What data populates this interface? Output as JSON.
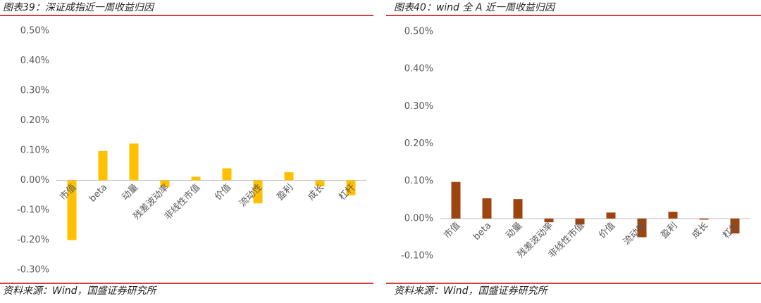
{
  "chart_data": [
    {
      "type": "bar",
      "title": "图表39：深证成指近一周收益归因",
      "source": "资料来源：Wind，国盛证券研究所",
      "categories": [
        "市值",
        "beta",
        "动量",
        "残差波动率",
        "非线性市值",
        "价值",
        "流动性",
        "盈利",
        "成长",
        "杠杆"
      ],
      "values": [
        -0.2,
        0.098,
        0.123,
        -0.022,
        0.012,
        0.04,
        -0.077,
        0.027,
        -0.02,
        -0.05
      ],
      "color": "#FFC000",
      "grid": false,
      "ylim": [
        -0.3,
        0.5
      ],
      "yticks": [
        {
          "value": -0.3,
          "label": "-0.30%"
        },
        {
          "value": -0.2,
          "label": "-0.20%"
        },
        {
          "value": -0.1,
          "label": "-0.10%"
        },
        {
          "value": 0,
          "label": "0.00%"
        },
        {
          "value": 0.1,
          "label": "0.10%"
        },
        {
          "value": 0.2,
          "label": "0.20%"
        },
        {
          "value": 0.3,
          "label": "0.30%"
        },
        {
          "value": 0.4,
          "label": "0.40%"
        },
        {
          "value": 0.5,
          "label": "0.50%"
        }
      ]
    },
    {
      "type": "bar",
      "title": "图表40：wind 全 A 近一周收益归因",
      "source": "资料来源：Wind，国盛证券研究所",
      "categories": [
        "市值",
        "beta",
        "动量",
        "残差波动率",
        "非线性市值",
        "价值",
        "流动性",
        "盈利",
        "成长",
        "杠杆"
      ],
      "values": [
        0.098,
        0.054,
        0.052,
        -0.01,
        -0.016,
        0.016,
        -0.05,
        0.018,
        -0.003,
        -0.04
      ],
      "color": "#9E4410",
      "grid": false,
      "ylim": [
        -0.1,
        0.5
      ],
      "yticks": [
        {
          "value": -0.1,
          "label": "-0.10%"
        },
        {
          "value": 0,
          "label": "0.00%"
        },
        {
          "value": 0.1,
          "label": "0.10%"
        },
        {
          "value": 0.2,
          "label": "0.20%"
        },
        {
          "value": 0.3,
          "label": "0.30%"
        },
        {
          "value": 0.4,
          "label": "0.40%"
        },
        {
          "value": 0.5,
          "label": "0.50%"
        }
      ]
    }
  ]
}
